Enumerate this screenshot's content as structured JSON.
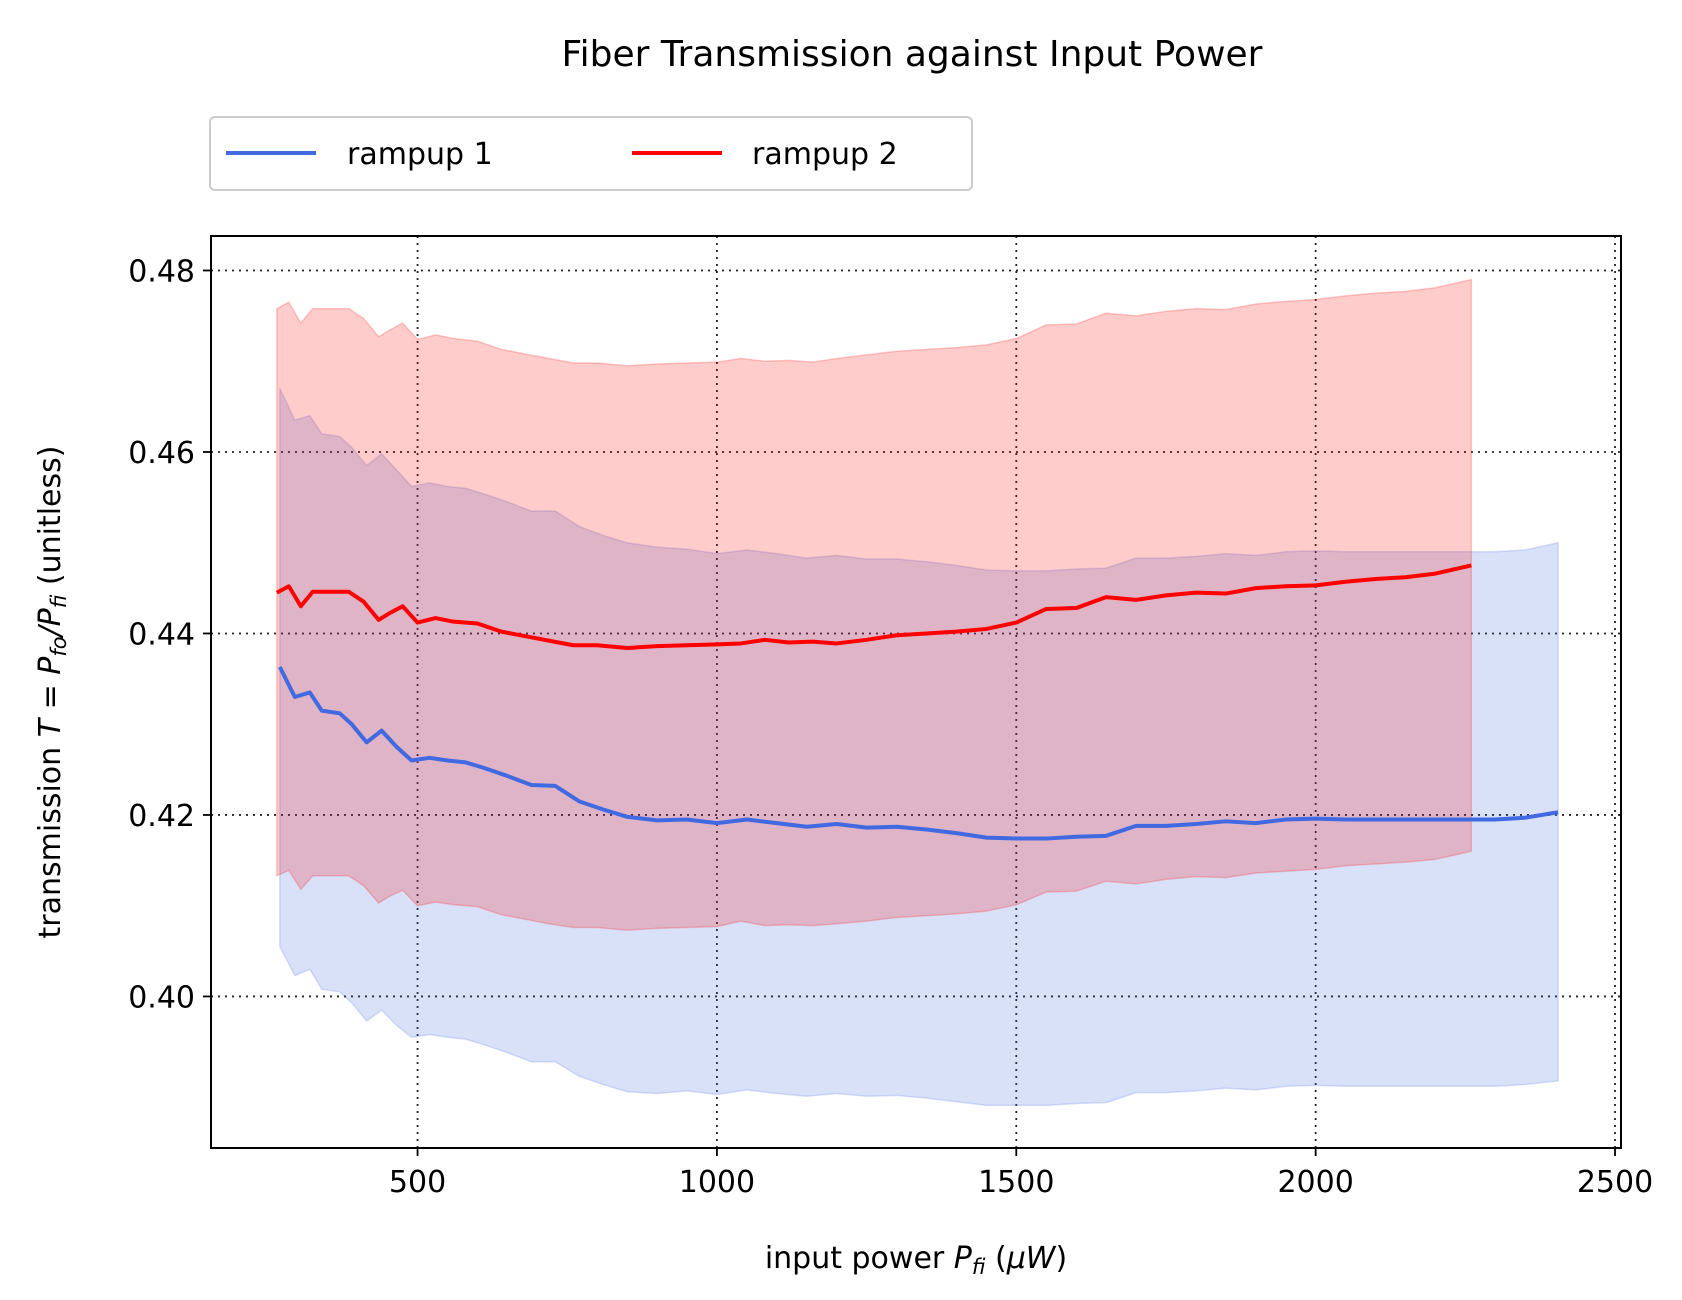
{
  "chart_data": {
    "type": "line",
    "title": "Fiber Transmission against Input Power",
    "xlabel": "input power P_fi (μW)",
    "ylabel": "transmission T = P_fo/P_fi (unitless)",
    "xlim": [
      155,
      2510
    ],
    "ylim": [
      0.3833,
      0.4838
    ],
    "xticks": [
      500,
      1000,
      1500,
      2000,
      2500
    ],
    "xtick_labels": [
      "500",
      "1000",
      "1500",
      "2000",
      "2500"
    ],
    "yticks": [
      0.4,
      0.42,
      0.44,
      0.46,
      0.48
    ],
    "ytick_labels": [
      "0.40",
      "0.42",
      "0.44",
      "0.46",
      "0.48"
    ],
    "grid": true,
    "legend_position": "top-left, above plot",
    "series": [
      {
        "name": "rampup 1",
        "color": "#4169e1",
        "x": [
          270,
          295,
          320,
          340,
          370,
          390,
          415,
          440,
          465,
          490,
          520,
          550,
          580,
          610,
          650,
          690,
          730,
          770,
          810,
          850,
          900,
          950,
          1000,
          1050,
          1100,
          1150,
          1200,
          1250,
          1300,
          1350,
          1400,
          1450,
          1500,
          1550,
          1600,
          1650,
          1700,
          1750,
          1800,
          1850,
          1900,
          1950,
          2000,
          2050,
          2100,
          2150,
          2200,
          2250,
          2300,
          2350,
          2405
        ],
        "y": [
          0.4363,
          0.433,
          0.4335,
          0.4315,
          0.4312,
          0.43,
          0.428,
          0.4293,
          0.4275,
          0.426,
          0.4263,
          0.426,
          0.4258,
          0.4252,
          0.4243,
          0.4233,
          0.4232,
          0.4215,
          0.4206,
          0.4198,
          0.4194,
          0.4195,
          0.4191,
          0.4195,
          0.4191,
          0.4187,
          0.419,
          0.4186,
          0.4187,
          0.4184,
          0.418,
          0.4175,
          0.4174,
          0.4174,
          0.4176,
          0.4177,
          0.4188,
          0.4188,
          0.419,
          0.4193,
          0.4191,
          0.4195,
          0.4196,
          0.4195,
          0.4195,
          0.4195,
          0.4195,
          0.4195,
          0.4195,
          0.4197,
          0.4203
        ],
        "lower": [
          0.4055,
          0.4023,
          0.403,
          0.4008,
          0.4005,
          0.3993,
          0.3973,
          0.3985,
          0.3968,
          0.3955,
          0.3958,
          0.3955,
          0.3953,
          0.3947,
          0.3938,
          0.3928,
          0.3928,
          0.3912,
          0.3903,
          0.3895,
          0.3893,
          0.3896,
          0.3892,
          0.3897,
          0.3893,
          0.389,
          0.3893,
          0.389,
          0.3891,
          0.3888,
          0.3884,
          0.388,
          0.388,
          0.388,
          0.3882,
          0.3883,
          0.3894,
          0.3894,
          0.3896,
          0.3899,
          0.3897,
          0.3901,
          0.3902,
          0.3901,
          0.3901,
          0.3901,
          0.3901,
          0.3901,
          0.3901,
          0.3903,
          0.3907
        ],
        "upper": [
          0.467,
          0.4635,
          0.464,
          0.462,
          0.4617,
          0.4605,
          0.4585,
          0.4598,
          0.458,
          0.4562,
          0.4566,
          0.4562,
          0.456,
          0.4554,
          0.4545,
          0.4535,
          0.4535,
          0.4518,
          0.4508,
          0.45,
          0.4495,
          0.4493,
          0.4488,
          0.4492,
          0.4488,
          0.4483,
          0.4486,
          0.4482,
          0.4482,
          0.4479,
          0.4475,
          0.447,
          0.4469,
          0.4469,
          0.4471,
          0.4472,
          0.4483,
          0.4483,
          0.4485,
          0.4488,
          0.4486,
          0.449,
          0.4491,
          0.449,
          0.449,
          0.449,
          0.449,
          0.449,
          0.449,
          0.4492,
          0.45
        ]
      },
      {
        "name": "rampup 2",
        "color": "#ff0000",
        "x": [
          265,
          285,
          305,
          325,
          345,
          365,
          385,
          410,
          435,
          455,
          475,
          500,
          530,
          560,
          600,
          640,
          680,
          720,
          760,
          800,
          850,
          900,
          950,
          1000,
          1040,
          1080,
          1120,
          1160,
          1200,
          1250,
          1300,
          1350,
          1400,
          1450,
          1500,
          1550,
          1600,
          1650,
          1700,
          1750,
          1800,
          1850,
          1900,
          1950,
          2000,
          2050,
          2100,
          2150,
          2200,
          2260
        ],
        "y": [
          0.4445,
          0.4452,
          0.443,
          0.4446,
          0.4446,
          0.4446,
          0.4446,
          0.4435,
          0.4415,
          0.4423,
          0.443,
          0.4412,
          0.4417,
          0.4413,
          0.4411,
          0.4402,
          0.4397,
          0.4392,
          0.4387,
          0.4387,
          0.4384,
          0.4386,
          0.4387,
          0.4388,
          0.4389,
          0.4393,
          0.439,
          0.4391,
          0.4389,
          0.4393,
          0.4398,
          0.44,
          0.4402,
          0.4405,
          0.4412,
          0.4427,
          0.4428,
          0.444,
          0.4437,
          0.4442,
          0.4445,
          0.4444,
          0.445,
          0.4452,
          0.4453,
          0.4457,
          0.446,
          0.4462,
          0.4466,
          0.4475
        ],
        "lower": [
          0.4133,
          0.4139,
          0.4118,
          0.4133,
          0.4133,
          0.4133,
          0.4133,
          0.4122,
          0.4103,
          0.4111,
          0.4117,
          0.41,
          0.4104,
          0.4101,
          0.4099,
          0.409,
          0.4085,
          0.408,
          0.4076,
          0.4076,
          0.4073,
          0.4075,
          0.4076,
          0.4077,
          0.4083,
          0.4078,
          0.4079,
          0.4078,
          0.408,
          0.4083,
          0.4087,
          0.4089,
          0.4091,
          0.4094,
          0.4101,
          0.4115,
          0.4116,
          0.4127,
          0.4124,
          0.4129,
          0.4132,
          0.4131,
          0.4136,
          0.4138,
          0.414,
          0.4144,
          0.4146,
          0.4148,
          0.4151,
          0.416
        ],
        "upper": [
          0.4758,
          0.4765,
          0.4742,
          0.4758,
          0.4758,
          0.4758,
          0.4758,
          0.4747,
          0.4727,
          0.4735,
          0.4742,
          0.4724,
          0.4729,
          0.4725,
          0.4722,
          0.4713,
          0.4708,
          0.4703,
          0.4698,
          0.4698,
          0.4695,
          0.4697,
          0.4698,
          0.4699,
          0.4703,
          0.47,
          0.4701,
          0.4699,
          0.4703,
          0.4707,
          0.4711,
          0.4713,
          0.4715,
          0.4718,
          0.4725,
          0.474,
          0.4741,
          0.4753,
          0.475,
          0.4755,
          0.4758,
          0.4757,
          0.4763,
          0.4766,
          0.4768,
          0.4772,
          0.4775,
          0.4777,
          0.4781,
          0.479
        ]
      }
    ]
  }
}
